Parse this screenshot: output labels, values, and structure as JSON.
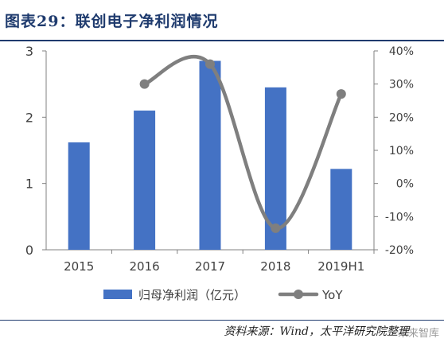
{
  "header": {
    "title": "图表29：联创电子净利润情况"
  },
  "chart_data": {
    "type": "bar",
    "title": "图表29：联创电子净利润情况",
    "categories": [
      "2015",
      "2016",
      "2017",
      "2018",
      "2019H1"
    ],
    "series": [
      {
        "name": "归母净利润（亿元）",
        "type": "bar",
        "axis": "left",
        "values": [
          1.62,
          2.1,
          2.85,
          2.45,
          1.22
        ],
        "color": "#4472C4"
      },
      {
        "name": "YoY",
        "type": "line",
        "axis": "right",
        "values": [
          null,
          0.3,
          0.36,
          -0.135,
          0.27
        ],
        "color": "#7f7f7f"
      }
    ],
    "y_left": {
      "min": 0,
      "max": 3,
      "ticks": [
        "0",
        "1",
        "2",
        "3"
      ]
    },
    "y_right": {
      "min": -0.2,
      "max": 0.4,
      "ticks": [
        "-20%",
        "-10%",
        "0%",
        "10%",
        "20%",
        "30%",
        "40%"
      ]
    },
    "legend": {
      "position": "bottom",
      "items": [
        "归母净利润（亿元）",
        "YoY"
      ]
    },
    "grid": false
  },
  "footer": {
    "source": "资料来源：Wind，太平洋研究院整理",
    "watermark": "未来智库"
  }
}
